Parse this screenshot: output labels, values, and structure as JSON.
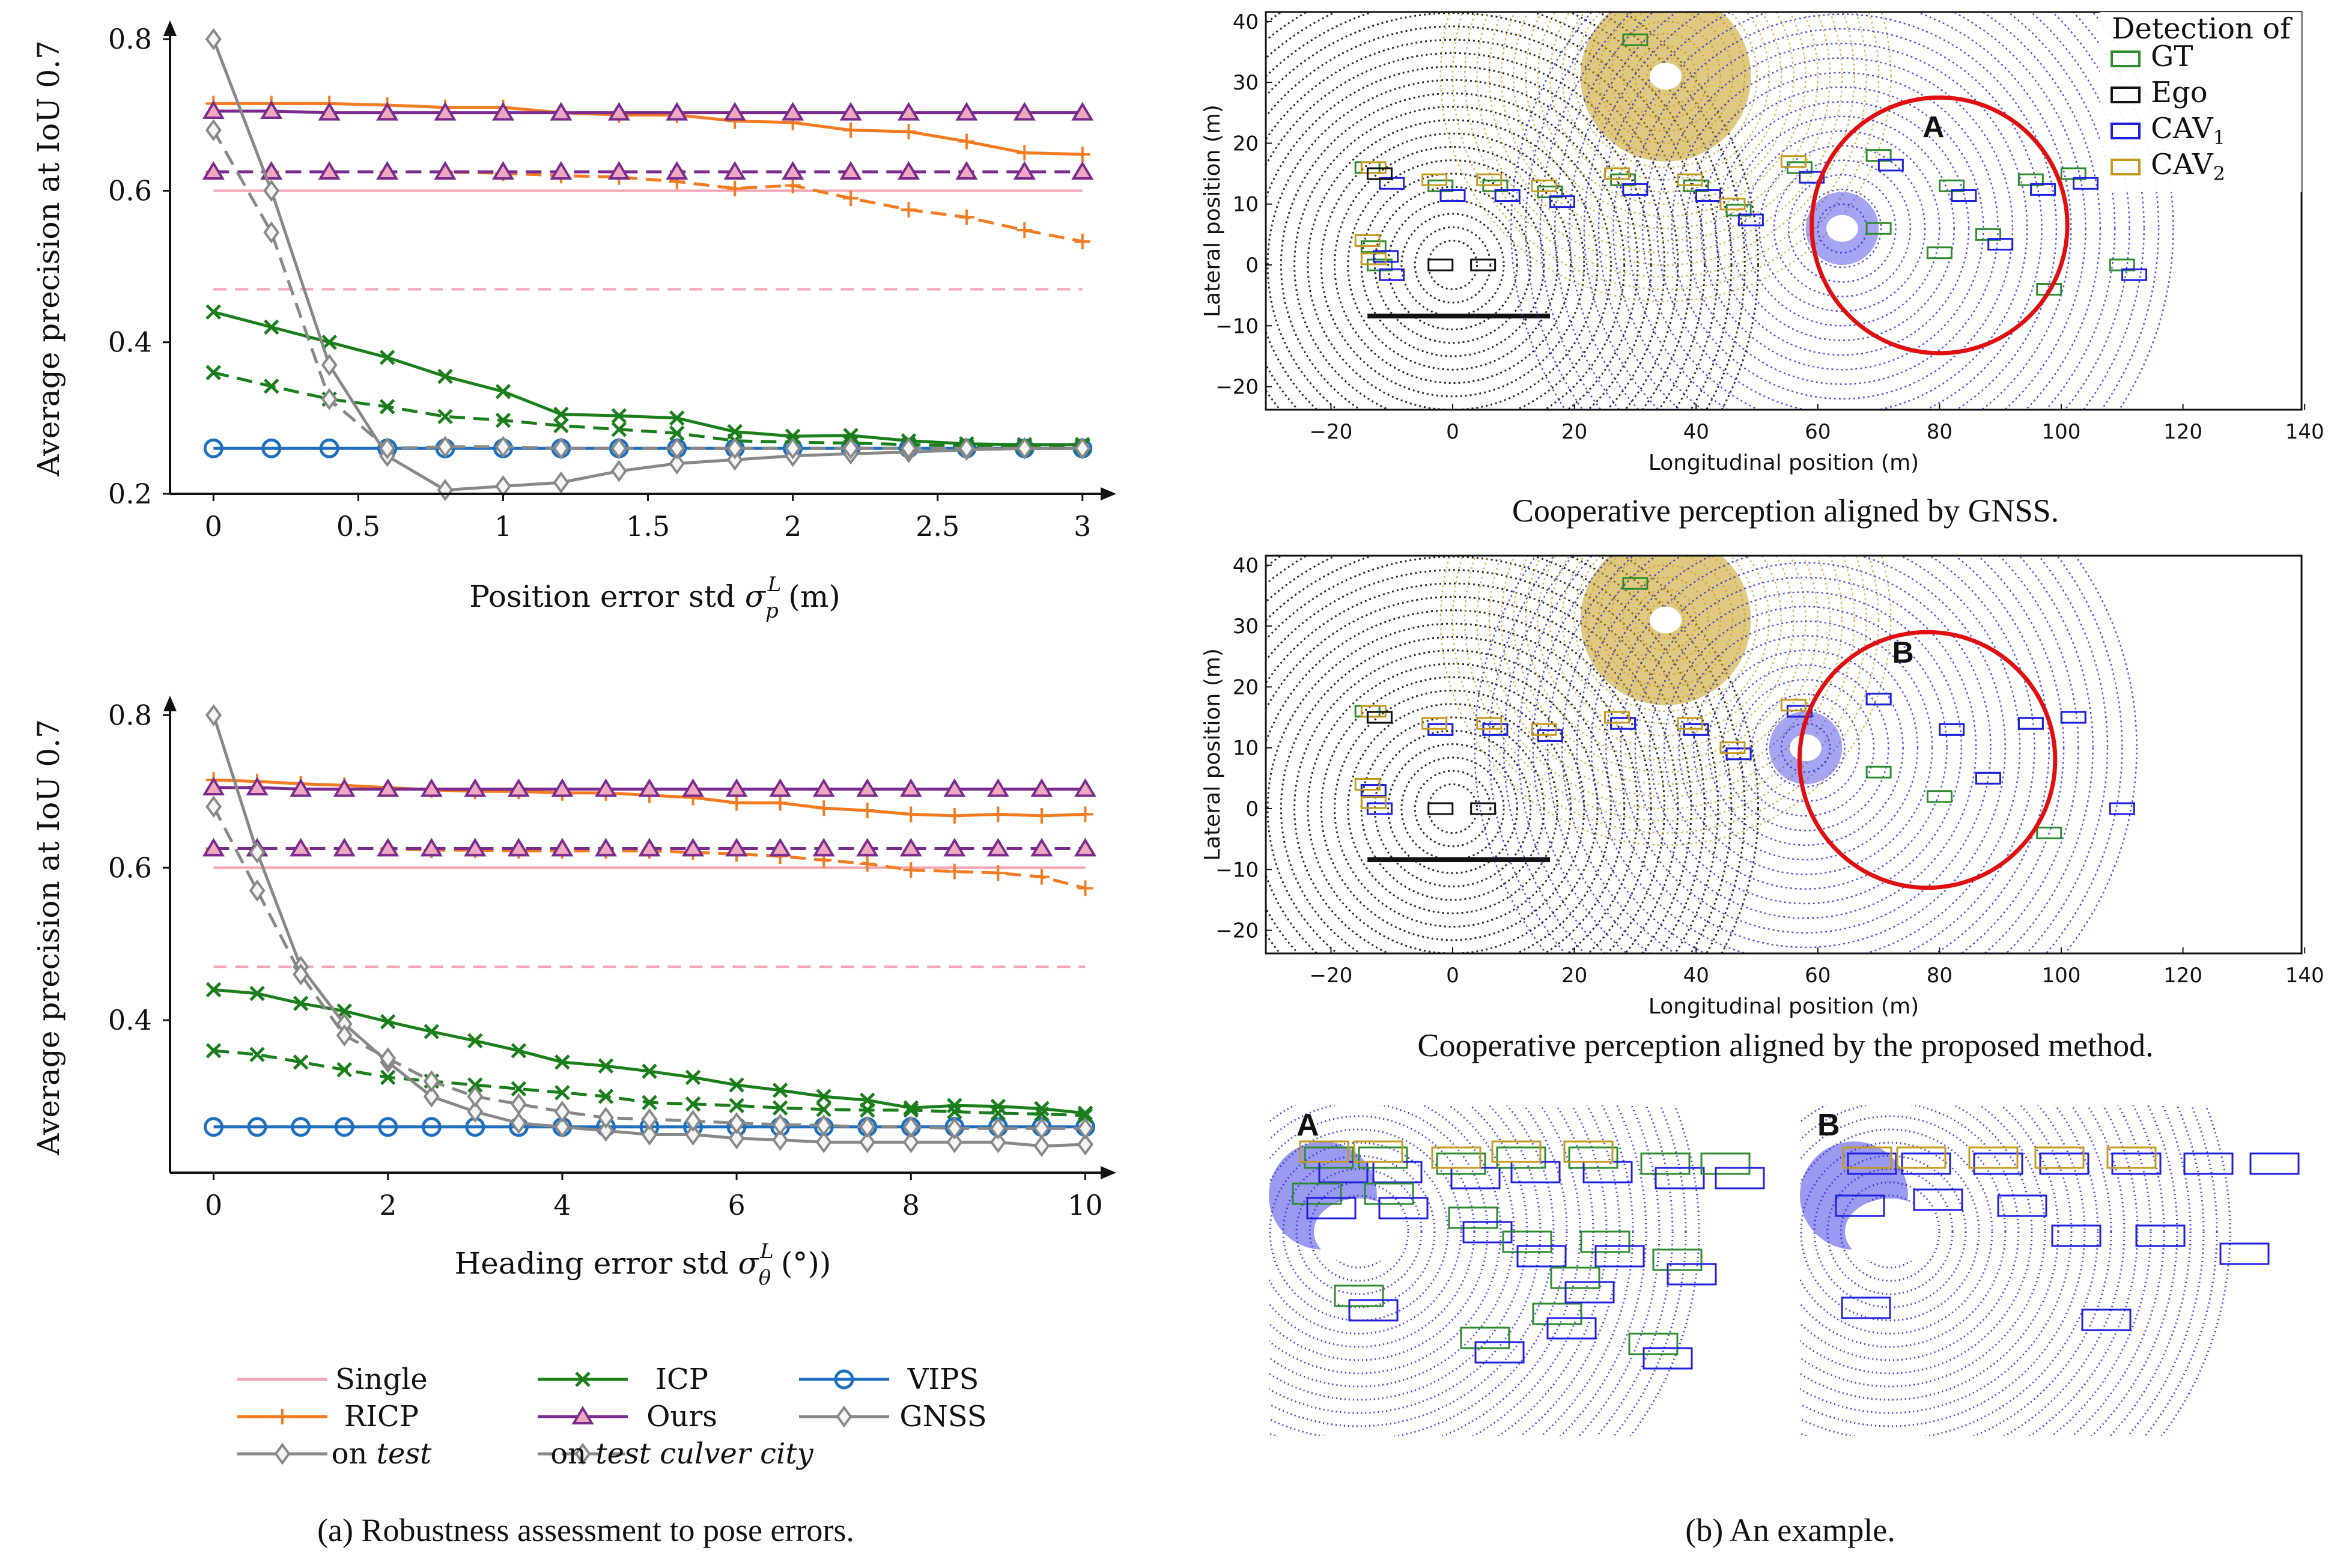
{
  "colors": {
    "single": "#f4a6b4",
    "ricp": "#f47b20",
    "icp": "#1a7f1a",
    "ours": "#7b2a8e",
    "vips": "#1f6fbf",
    "gnss": "#888888",
    "gt": "#2e8b2e",
    "ego": "#111111",
    "cav1": "#1f1fe0",
    "cav2": "#c49a1c",
    "circle": "#e01010"
  },
  "legend": {
    "single": "Single",
    "ricp": "RICP",
    "icp": "ICP",
    "ours": "Ours",
    "vips": "VIPS",
    "gnss": "GNSS",
    "on": "on",
    "test": "test",
    "test_culver": "test culver city"
  },
  "captions": {
    "a": "(a) Robustness assessment to pose errors.",
    "b": "(b) An example.",
    "gnss": "Cooperative perception aligned by GNSS.",
    "proposed": "Cooperative perception aligned by the proposed method."
  },
  "bev": {
    "xlabel": "Longitudinal position (m)",
    "ylabel": "Lateral position (m)",
    "xticks": [
      "−20",
      "0",
      "20",
      "40",
      "60",
      "80",
      "100",
      "120",
      "140"
    ],
    "yticks": [
      "40",
      "30",
      "20",
      "10",
      "0",
      "−10",
      "−20"
    ],
    "legend_title": "Detection of",
    "legend_items": [
      "GT",
      "Ego",
      "CAV",
      "CAV"
    ],
    "legend_subs": [
      "",
      "",
      "1",
      "2"
    ],
    "markers": [
      "A",
      "B"
    ]
  },
  "chart_data": [
    {
      "type": "line",
      "xlabel": "Position error std σ_p^L (m)",
      "ylabel": "Average precision at IoU 0.7",
      "xlim": [
        -0.15,
        3.1
      ],
      "ylim": [
        0.2,
        0.82
      ],
      "xticks": [
        "0",
        "0.5",
        "1",
        "1.5",
        "2",
        "2.5",
        "3"
      ],
      "yticks": [
        "0.8",
        "0.6",
        "0.4",
        "0.2"
      ],
      "x": [
        0,
        0.2,
        0.4,
        0.6,
        0.8,
        1.0,
        1.2,
        1.4,
        1.6,
        1.8,
        2.0,
        2.2,
        2.4,
        2.6,
        2.8,
        3.0
      ],
      "series": [
        {
          "name": "Single",
          "dataset": "test",
          "values": [
            0.6,
            0.6,
            0.6,
            0.6,
            0.6,
            0.6,
            0.6,
            0.6,
            0.6,
            0.6,
            0.6,
            0.6,
            0.6,
            0.6,
            0.6,
            0.6
          ]
        },
        {
          "name": "Single",
          "dataset": "test culver city",
          "values": [
            0.47,
            0.47,
            0.47,
            0.47,
            0.47,
            0.47,
            0.47,
            0.47,
            0.47,
            0.47,
            0.47,
            0.47,
            0.47,
            0.47,
            0.47,
            0.47
          ]
        },
        {
          "name": "RICP",
          "dataset": "test",
          "values": [
            0.715,
            0.715,
            0.715,
            0.713,
            0.71,
            0.71,
            0.703,
            0.7,
            0.7,
            0.692,
            0.69,
            0.68,
            0.678,
            0.665,
            0.65,
            0.648
          ]
        },
        {
          "name": "RICP",
          "dataset": "test culver city",
          "values": [
            0.625,
            0.625,
            0.625,
            0.625,
            0.625,
            0.623,
            0.62,
            0.618,
            0.612,
            0.603,
            0.607,
            0.59,
            0.575,
            0.565,
            0.548,
            0.533
          ]
        },
        {
          "name": "Ours",
          "dataset": "test",
          "values": [
            0.705,
            0.705,
            0.703,
            0.703,
            0.703,
            0.703,
            0.703,
            0.703,
            0.703,
            0.703,
            0.703,
            0.703,
            0.703,
            0.703,
            0.703,
            0.703
          ]
        },
        {
          "name": "Ours",
          "dataset": "test culver city",
          "values": [
            0.625,
            0.625,
            0.625,
            0.625,
            0.625,
            0.625,
            0.625,
            0.625,
            0.625,
            0.625,
            0.625,
            0.625,
            0.625,
            0.625,
            0.625,
            0.625
          ]
        },
        {
          "name": "ICP",
          "dataset": "test",
          "values": [
            0.44,
            0.42,
            0.4,
            0.38,
            0.355,
            0.335,
            0.305,
            0.303,
            0.3,
            0.282,
            0.276,
            0.277,
            0.27,
            0.266,
            0.265,
            0.265
          ]
        },
        {
          "name": "ICP",
          "dataset": "test culver city",
          "values": [
            0.36,
            0.342,
            0.325,
            0.315,
            0.302,
            0.297,
            0.29,
            0.285,
            0.28,
            0.27,
            0.268,
            0.267,
            0.265,
            0.263,
            0.263,
            0.263
          ]
        },
        {
          "name": "VIPS",
          "dataset": "test",
          "values": [
            0.26,
            0.26,
            0.26,
            0.26,
            0.26,
            0.26,
            0.26,
            0.26,
            0.26,
            0.26,
            0.26,
            0.26,
            0.26,
            0.26,
            0.26,
            0.26
          ]
        },
        {
          "name": "GNSS",
          "dataset": "test",
          "values": [
            0.8,
            0.6,
            0.37,
            0.25,
            0.205,
            0.21,
            0.215,
            0.23,
            0.24,
            0.245,
            0.25,
            0.253,
            0.255,
            0.258,
            0.26,
            0.26
          ]
        },
        {
          "name": "GNSS",
          "dataset": "test culver city",
          "values": [
            0.68,
            0.545,
            0.325,
            0.26,
            0.262,
            0.262,
            0.26,
            0.26,
            0.26,
            0.26,
            0.26,
            0.26,
            0.26,
            0.26,
            0.26,
            0.26
          ]
        }
      ]
    },
    {
      "type": "line",
      "xlabel": "Heading error std σ_θ^L (°)",
      "ylabel": "Average precision at IoU 0.7",
      "xlim": [
        -0.5,
        10.3
      ],
      "ylim": [
        0.2,
        0.82
      ],
      "xticks": [
        "0",
        "2",
        "4",
        "6",
        "8",
        "10"
      ],
      "yticks": [
        "0.8",
        "0.6",
        "0.4"
      ],
      "x": [
        0,
        0.5,
        1,
        1.5,
        2,
        2.5,
        3,
        3.5,
        4,
        4.5,
        5,
        5.5,
        6,
        6.5,
        7,
        7.5,
        8,
        8.5,
        9,
        9.5,
        10
      ],
      "series": [
        {
          "name": "Single",
          "dataset": "test",
          "values": [
            0.6,
            0.6,
            0.6,
            0.6,
            0.6,
            0.6,
            0.6,
            0.6,
            0.6,
            0.6,
            0.6,
            0.6,
            0.6,
            0.6,
            0.6,
            0.6,
            0.6,
            0.6,
            0.6,
            0.6,
            0.6
          ]
        },
        {
          "name": "Single",
          "dataset": "test culver city",
          "values": [
            0.47,
            0.47,
            0.47,
            0.47,
            0.47,
            0.47,
            0.47,
            0.47,
            0.47,
            0.47,
            0.47,
            0.47,
            0.47,
            0.47,
            0.47,
            0.47,
            0.47,
            0.47,
            0.47,
            0.47,
            0.47
          ]
        },
        {
          "name": "RICP",
          "dataset": "test",
          "values": [
            0.715,
            0.713,
            0.71,
            0.708,
            0.705,
            0.702,
            0.7,
            0.7,
            0.698,
            0.698,
            0.695,
            0.692,
            0.685,
            0.685,
            0.678,
            0.675,
            0.67,
            0.668,
            0.67,
            0.668,
            0.67
          ]
        },
        {
          "name": "RICP",
          "dataset": "test culver city",
          "values": [
            0.625,
            0.625,
            0.625,
            0.625,
            0.625,
            0.623,
            0.623,
            0.622,
            0.622,
            0.622,
            0.622,
            0.62,
            0.618,
            0.615,
            0.61,
            0.605,
            0.597,
            0.595,
            0.593,
            0.588,
            0.573
          ]
        },
        {
          "name": "Ours",
          "dataset": "test",
          "values": [
            0.705,
            0.705,
            0.703,
            0.703,
            0.703,
            0.703,
            0.703,
            0.703,
            0.703,
            0.703,
            0.703,
            0.703,
            0.703,
            0.703,
            0.703,
            0.703,
            0.703,
            0.703,
            0.703,
            0.703,
            0.703
          ]
        },
        {
          "name": "Ours",
          "dataset": "test culver city",
          "values": [
            0.625,
            0.625,
            0.625,
            0.625,
            0.625,
            0.625,
            0.625,
            0.625,
            0.625,
            0.625,
            0.625,
            0.625,
            0.625,
            0.625,
            0.625,
            0.625,
            0.625,
            0.625,
            0.625,
            0.625,
            0.625
          ]
        },
        {
          "name": "ICP",
          "dataset": "test",
          "values": [
            0.44,
            0.435,
            0.422,
            0.412,
            0.398,
            0.385,
            0.373,
            0.36,
            0.345,
            0.34,
            0.333,
            0.325,
            0.315,
            0.308,
            0.3,
            0.295,
            0.285,
            0.288,
            0.287,
            0.284,
            0.278
          ]
        },
        {
          "name": "ICP",
          "dataset": "test culver city",
          "values": [
            0.36,
            0.355,
            0.345,
            0.335,
            0.325,
            0.32,
            0.315,
            0.31,
            0.305,
            0.3,
            0.292,
            0.29,
            0.288,
            0.285,
            0.283,
            0.282,
            0.282,
            0.28,
            0.278,
            0.277,
            0.275
          ]
        },
        {
          "name": "VIPS",
          "dataset": "test",
          "values": [
            0.26,
            0.26,
            0.26,
            0.26,
            0.26,
            0.26,
            0.26,
            0.26,
            0.26,
            0.26,
            0.26,
            0.26,
            0.26,
            0.26,
            0.26,
            0.26,
            0.26,
            0.26,
            0.26,
            0.26,
            0.26
          ]
        },
        {
          "name": "GNSS",
          "dataset": "test",
          "values": [
            0.8,
            0.62,
            0.47,
            0.395,
            0.345,
            0.3,
            0.28,
            0.265,
            0.26,
            0.255,
            0.25,
            0.25,
            0.245,
            0.243,
            0.24,
            0.24,
            0.24,
            0.24,
            0.24,
            0.235,
            0.237
          ]
        },
        {
          "name": "GNSS",
          "dataset": "test culver city",
          "values": [
            0.68,
            0.57,
            0.46,
            0.38,
            0.35,
            0.32,
            0.3,
            0.29,
            0.28,
            0.272,
            0.27,
            0.268,
            0.265,
            0.263,
            0.262,
            0.26,
            0.26,
            0.258,
            0.258,
            0.258,
            0.258
          ]
        }
      ]
    }
  ]
}
